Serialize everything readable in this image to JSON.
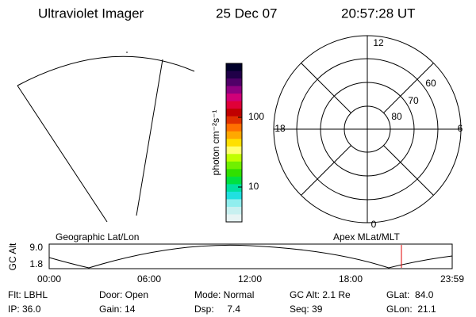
{
  "header": {
    "title": "Ultraviolet Imager",
    "date": "25 Dec 07",
    "time": "20:57:28 UT"
  },
  "colorbar": {
    "label": "photon cm⁻²s⁻¹",
    "ticks": [
      "100",
      "10"
    ]
  },
  "polar": {
    "lat_labels": [
      "80",
      "70",
      "60"
    ],
    "mlt_labels": [
      "12",
      "6",
      "0",
      "18"
    ]
  },
  "altitude_plot": {
    "y_label": "GC Alt",
    "yticks": [
      "9.0",
      "1.8"
    ],
    "left_title": "Geographic Lat/Lon",
    "right_title": "Apex MLat/MLT",
    "xticks": [
      "00:00",
      "06:00",
      "12:00",
      "18:00",
      "23:59"
    ]
  },
  "info": {
    "rows": [
      [
        "Flt: LBHL",
        "Door: Open",
        "Mode: Normal",
        "GC Alt: 2.1 Re",
        "GLat:  84.0"
      ],
      [
        "IP: 36.0",
        "Gain: 14",
        "Dsp:     7.4",
        "Seq: 39",
        "GLon:  21.1"
      ]
    ]
  }
}
